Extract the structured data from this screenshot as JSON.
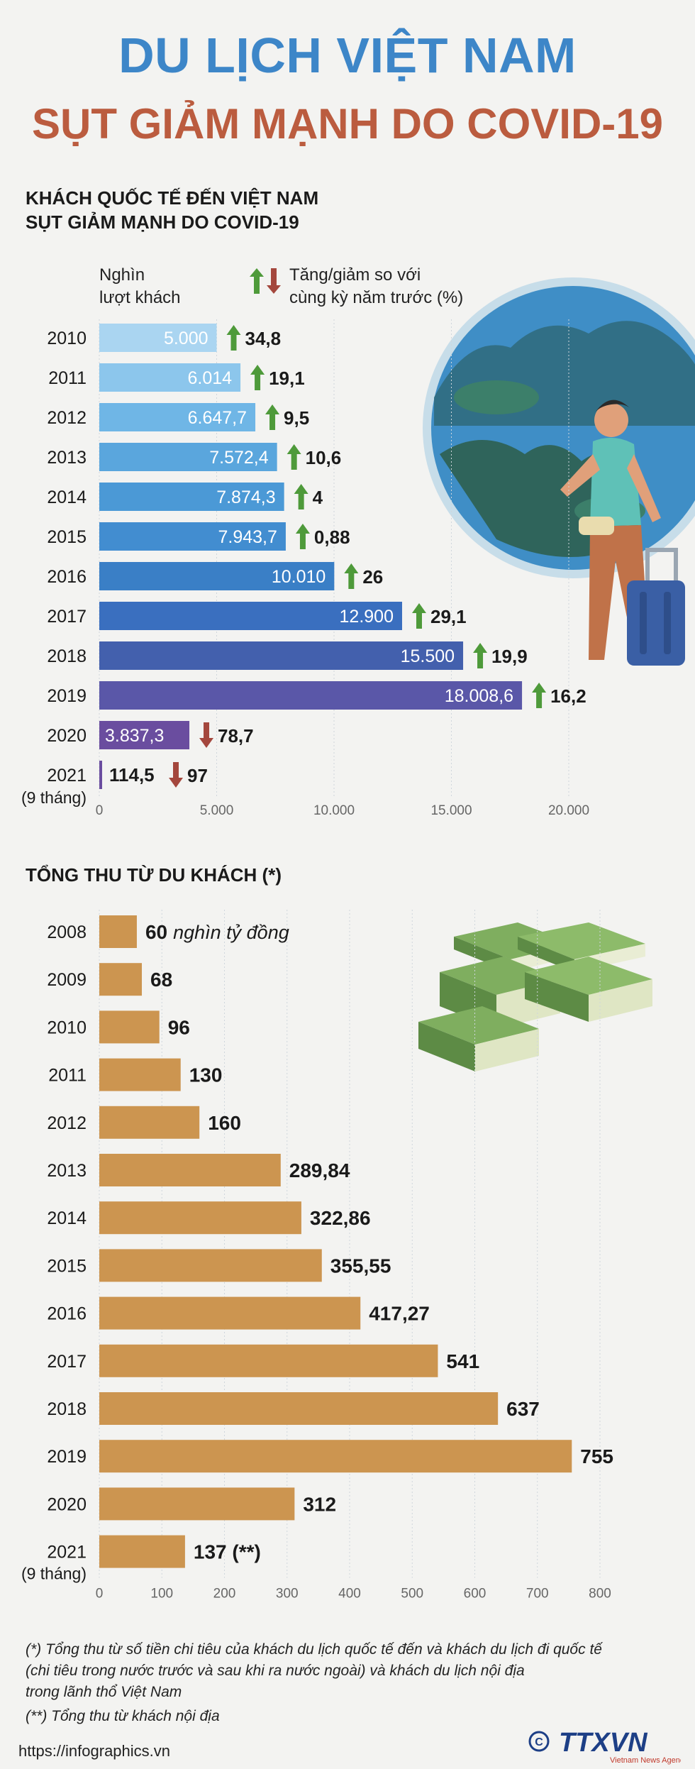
{
  "header": {
    "title_line1": "DU LỊCH VIỆT NAM",
    "title_line2": "SỤT GIẢM MẠNH DO COVID-19"
  },
  "section1": {
    "title_line1": "KHÁCH QUỐC TẾ ĐẾN VIỆT NAM",
    "title_line2": "SỤT GIẢM MẠNH DO COVID-19",
    "unit_line1": "Nghìn",
    "unit_line2": "lượt khách",
    "legend_line1": "Tăng/giảm so với",
    "legend_line2": "cùng kỳ năm trước (%)"
  },
  "section2": {
    "title": "TỔNG THU TỪ DU KHÁCH (*)"
  },
  "footnotes": {
    "note1_line1": "(*) Tổng thu từ số tiền chi tiêu của khách du lịch quốc tế đến và khách du lịch đi quốc tế",
    "note1_line2": "(chi tiêu trong nước trước và sau khi ra nước ngoài) và khách du lịch nội địa",
    "note1_line3": "trong lãnh thổ Việt Nam",
    "note2": "(**) Tổng thu từ khách nội địa"
  },
  "footer": {
    "url": "https://infographics.vn",
    "logo_text": "TTXVN",
    "logo_sub": "Vietnam News Agency"
  },
  "colors": {
    "title_blue": "#3d86c8",
    "title_red": "#bb5c3f",
    "arrow_up": "#4e9a3a",
    "arrow_down": "#a4473d",
    "revenue_bar": "#cc9550"
  },
  "chart_data": [
    {
      "type": "bar",
      "orientation": "horizontal",
      "categories": [
        "2010",
        "2011",
        "2012",
        "2013",
        "2014",
        "2015",
        "2016",
        "2017",
        "2018",
        "2019",
        "2020",
        "2021"
      ],
      "category_sublabels": {
        "2021": "(9 tháng)"
      },
      "values": [
        5000,
        6014,
        6647.7,
        7572.4,
        7874.3,
        7943.7,
        10010,
        12900,
        15500,
        18008.6,
        3837.3,
        114.5
      ],
      "value_labels": [
        "5.000",
        "6.014",
        "6.647,7",
        "7.572,4",
        "7.874,3",
        "7.943,7",
        "10.010",
        "12.900",
        "15.500",
        "18.008,6",
        "3.837,3",
        "114,5"
      ],
      "change_pct": [
        34.8,
        19.1,
        9.5,
        10.6,
        4,
        0.88,
        26,
        29.1,
        19.9,
        16.2,
        -78.7,
        -97
      ],
      "change_labels": [
        "34,8",
        "19,1",
        "9,5",
        "10,6",
        "4",
        "0,88",
        "26",
        "29,1",
        "19,9",
        "16,2",
        "78,7",
        "97"
      ],
      "change_direction": [
        "up",
        "up",
        "up",
        "up",
        "up",
        "up",
        "up",
        "up",
        "up",
        "up",
        "down",
        "down"
      ],
      "bar_colors": [
        "#aad5f1",
        "#8cc6ec",
        "#6fb6e6",
        "#5aa6dd",
        "#4b99d6",
        "#428dd0",
        "#3a7fc6",
        "#3a6fbf",
        "#4360ad",
        "#5a57a8",
        "#6a4d9f",
        "#6a4d9f"
      ],
      "xticks": [
        "0",
        "5.000",
        "10.000",
        "15.000",
        "20.000"
      ],
      "xlim": [
        0,
        20000
      ]
    },
    {
      "type": "bar",
      "orientation": "horizontal",
      "categories": [
        "2008",
        "2009",
        "2010",
        "2011",
        "2012",
        "2013",
        "2014",
        "2015",
        "2016",
        "2017",
        "2018",
        "2019",
        "2020",
        "2021"
      ],
      "category_sublabels": {
        "2021": "(9 tháng)"
      },
      "values": [
        60,
        68,
        96,
        130,
        160,
        289.84,
        322.86,
        355.55,
        417.27,
        541,
        637,
        755,
        312,
        137
      ],
      "value_labels": [
        "60",
        "68",
        "96",
        "130",
        "160",
        "289,84",
        "322,86",
        "355,55",
        "417,27",
        "541",
        "637",
        "755",
        "312",
        "137 (**)"
      ],
      "first_value_unit": "nghìn tỷ đồng",
      "bar_color": "#cc9550",
      "xticks": [
        "0",
        "100",
        "200",
        "300",
        "400",
        "500",
        "600",
        "700",
        "800"
      ],
      "xlim": [
        0,
        800
      ]
    }
  ]
}
